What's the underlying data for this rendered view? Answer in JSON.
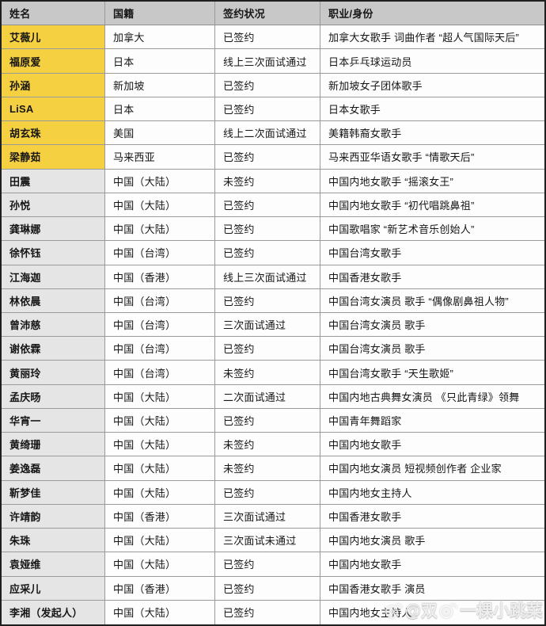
{
  "table": {
    "headers": [
      "姓名",
      "国籍",
      "签约状况",
      "职业/身份"
    ],
    "rows": [
      {
        "name": "艾薇儿",
        "nationality": "加拿大",
        "status": "已签约",
        "occupation": "加拿大女歌手 词曲作者 “超人气国际天后”",
        "highlight": true
      },
      {
        "name": "福原爱",
        "nationality": "日本",
        "status": "线上三次面试通过",
        "occupation": "日本乒乓球运动员",
        "highlight": true
      },
      {
        "name": "孙涵",
        "nationality": "新加坡",
        "status": "已签约",
        "occupation": "新加坡女子团体歌手",
        "highlight": true
      },
      {
        "name": "LiSA",
        "nationality": "日本",
        "status": "已签约",
        "occupation": "日本女歌手",
        "highlight": true
      },
      {
        "name": "胡玄珠",
        "nationality": "美国",
        "status": "线上二次面试通过",
        "occupation": "美籍韩裔女歌手",
        "highlight": true
      },
      {
        "name": "梁静茹",
        "nationality": "马来西亚",
        "status": "已签约",
        "occupation": "马来西亚华语女歌手 “情歌天后”",
        "highlight": true
      },
      {
        "name": "田震",
        "nationality": "中国（大陆）",
        "status": "未签约",
        "occupation": "中国内地女歌手 “摇滚女王”",
        "highlight": false
      },
      {
        "name": "孙悦",
        "nationality": "中国（大陆）",
        "status": "已签约",
        "occupation": "中国内地女歌手 “初代唱跳鼻祖”",
        "highlight": false
      },
      {
        "name": "龚琳娜",
        "nationality": "中国（大陆）",
        "status": "已签约",
        "occupation": "中国歌唱家 “新艺术音乐创始人”",
        "highlight": false
      },
      {
        "name": "徐怀钰",
        "nationality": "中国（台湾）",
        "status": "已签约",
        "occupation": "中国台湾女歌手",
        "highlight": false
      },
      {
        "name": "江海迦",
        "nationality": "中国（香港）",
        "status": "线上三次面试通过",
        "occupation": "中国香港女歌手",
        "highlight": false
      },
      {
        "name": "林依晨",
        "nationality": "中国（台湾）",
        "status": "已签约",
        "occupation": "中国台湾女演员 歌手 “偶像剧鼻祖人物”",
        "highlight": false
      },
      {
        "name": "曾沛慈",
        "nationality": "中国（台湾）",
        "status": "三次面试通过",
        "occupation": "中国台湾女演员 歌手",
        "highlight": false
      },
      {
        "name": "谢依霖",
        "nationality": "中国（台湾）",
        "status": "已签约",
        "occupation": "中国台湾女演员 歌手",
        "highlight": false
      },
      {
        "name": "黄丽玲",
        "nationality": "中国（台湾）",
        "status": "未签约",
        "occupation": "中国台湾女歌手 “天生歌姬”",
        "highlight": false
      },
      {
        "name": "孟庆旸",
        "nationality": "中国（大陆）",
        "status": "二次面试通过",
        "occupation": "中国内地古典舞女演员 《只此青绿》领舞",
        "highlight": false
      },
      {
        "name": "华宵一",
        "nationality": "中国（大陆）",
        "status": "已签约",
        "occupation": "中国青年舞蹈家",
        "highlight": false
      },
      {
        "name": "黄绮珊",
        "nationality": "中国（大陆）",
        "status": "未签约",
        "occupation": "中国内地女歌手",
        "highlight": false
      },
      {
        "name": "姜逸磊",
        "nationality": "中国（大陆）",
        "status": "未签约",
        "occupation": "中国内地女演员 短视频创作者 企业家",
        "highlight": false
      },
      {
        "name": "靳梦佳",
        "nationality": "中国（大陆）",
        "status": "已签约",
        "occupation": "中国内地女主持人",
        "highlight": false
      },
      {
        "name": "许靖韵",
        "nationality": "中国（香港）",
        "status": "三次面试通过",
        "occupation": "中国香港女歌手",
        "highlight": false
      },
      {
        "name": "朱珠",
        "nationality": "中国（大陆）",
        "status": "三次面试未通过",
        "occupation": "中国内地女演员 歌手",
        "highlight": false
      },
      {
        "name": "袁娅维",
        "nationality": "中国（大陆）",
        "status": "已签约",
        "occupation": "中国内地女歌手",
        "highlight": false
      },
      {
        "name": "应采儿",
        "nationality": "中国（香港）",
        "status": "已签约",
        "occupation": "中国香港女歌手 演员",
        "highlight": false
      },
      {
        "name": "李湘（发起人）",
        "nationality": "中国（大陆）",
        "status": "已签约",
        "occupation": "中国内地女主持人",
        "highlight": false
      }
    ]
  },
  "watermark": {
    "prefix": "@双",
    "suffix": "一棵小跳菜",
    "icon": "weibo-eye-icon"
  },
  "colors": {
    "header_bg": "#c8c8c8",
    "highlight_yellow": "#f5d040",
    "name_cell_bg": "#e5e5e5",
    "cell_bg": "#fdfdfd",
    "inner_border": "#9a9a9a",
    "outer_border": "#1f1f1f",
    "text": "#161616"
  }
}
